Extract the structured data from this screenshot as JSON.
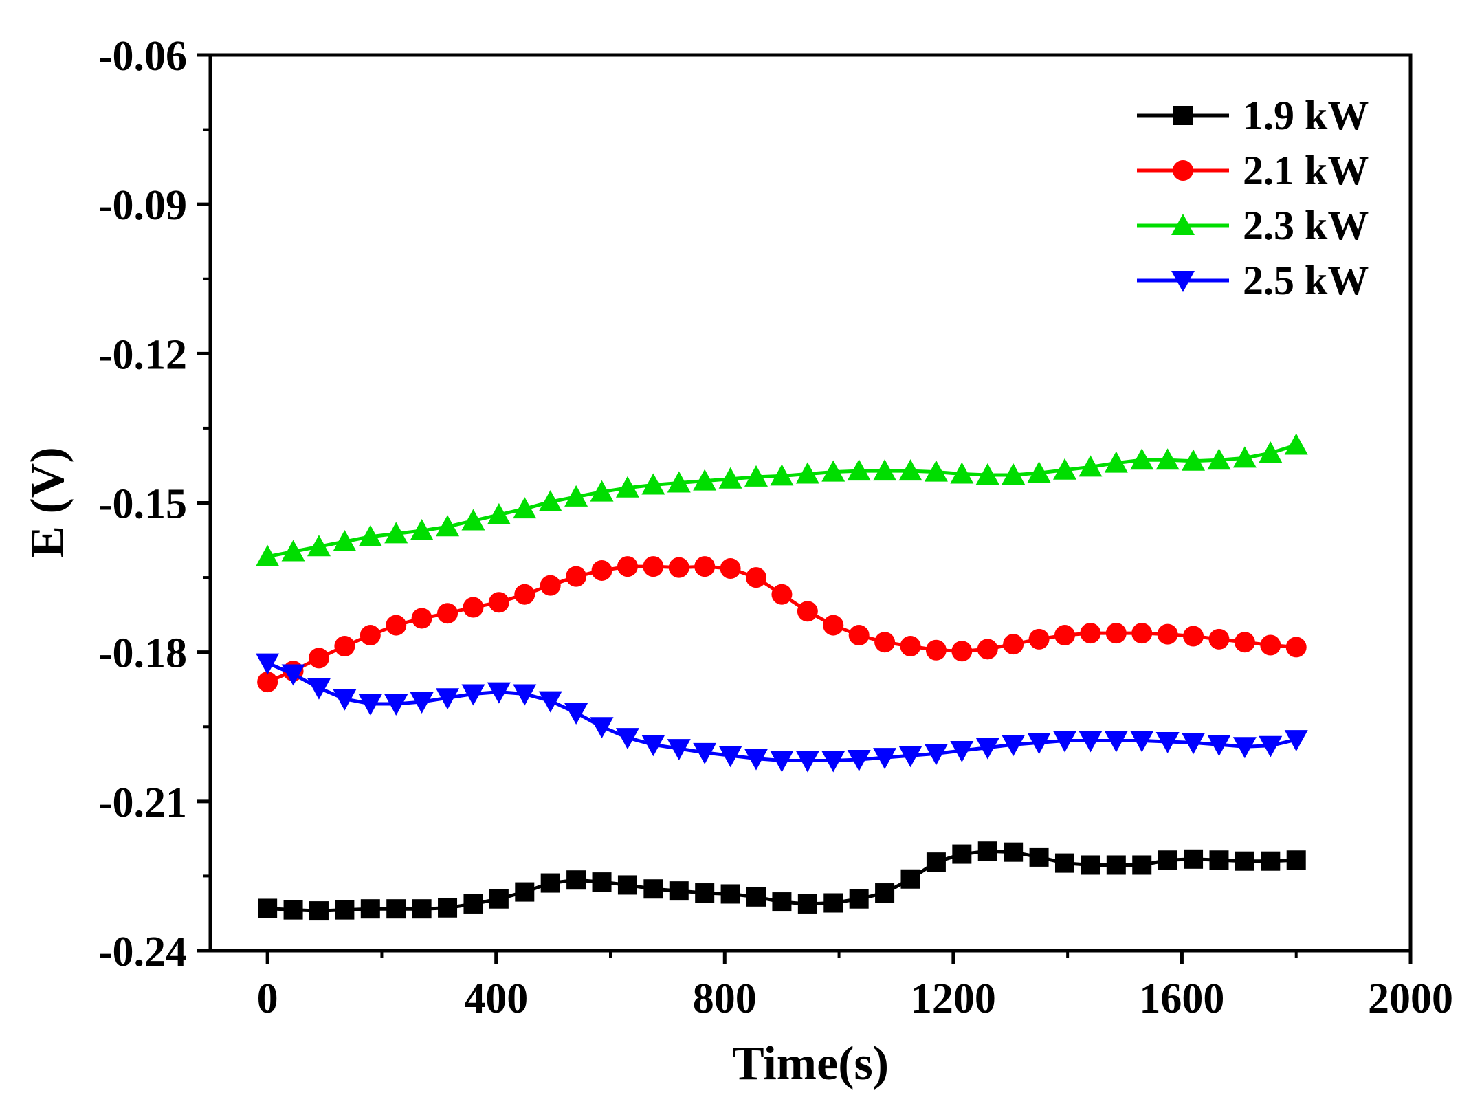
{
  "chart_data": {
    "type": "line",
    "xlabel": "Time(s)",
    "ylabel": "E (V)",
    "xlim": [
      -100,
      2000
    ],
    "ylim": [
      -0.24,
      -0.06
    ],
    "x_ticks": [
      0,
      400,
      800,
      1200,
      1600,
      2000
    ],
    "x_tick_labels": [
      "0",
      "400",
      "800",
      "1200",
      "1600",
      "2000"
    ],
    "y_ticks": [
      -0.24,
      -0.21,
      -0.18,
      -0.15,
      -0.12,
      -0.09,
      -0.06
    ],
    "y_tick_labels": [
      "-0.24",
      "-0.21",
      "-0.18",
      "-0.15",
      "-0.12",
      "-0.09",
      "-0.06"
    ],
    "grid": false,
    "legend_position": "top-right",
    "x": [
      0,
      45,
      90,
      135,
      180,
      225,
      270,
      315,
      360,
      405,
      450,
      495,
      540,
      585,
      630,
      675,
      720,
      765,
      810,
      855,
      900,
      945,
      990,
      1035,
      1080,
      1125,
      1170,
      1215,
      1260,
      1305,
      1350,
      1395,
      1440,
      1485,
      1530,
      1575,
      1620,
      1665,
      1710,
      1755,
      1800
    ],
    "series": [
      {
        "name": "1.9 kW",
        "color": "#000000",
        "marker": "square",
        "values": [
          -0.2315,
          -0.2318,
          -0.232,
          -0.2318,
          -0.2316,
          -0.2316,
          -0.2316,
          -0.2314,
          -0.2306,
          -0.2296,
          -0.2282,
          -0.2264,
          -0.2258,
          -0.2262,
          -0.2268,
          -0.2276,
          -0.228,
          -0.2284,
          -0.2286,
          -0.2292,
          -0.2302,
          -0.2306,
          -0.2304,
          -0.2296,
          -0.2284,
          -0.2256,
          -0.2222,
          -0.2206,
          -0.22,
          -0.2202,
          -0.2212,
          -0.2224,
          -0.2228,
          -0.2228,
          -0.2228,
          -0.2218,
          -0.2216,
          -0.2218,
          -0.222,
          -0.222,
          -0.2218
        ]
      },
      {
        "name": "2.1 kW",
        "color": "#ff0000",
        "marker": "circle",
        "values": [
          -0.186,
          -0.1838,
          -0.1812,
          -0.1788,
          -0.1766,
          -0.1746,
          -0.1732,
          -0.1722,
          -0.171,
          -0.17,
          -0.1684,
          -0.1666,
          -0.1648,
          -0.1636,
          -0.1628,
          -0.1628,
          -0.163,
          -0.1628,
          -0.1632,
          -0.165,
          -0.1684,
          -0.1718,
          -0.1746,
          -0.1766,
          -0.178,
          -0.1788,
          -0.1796,
          -0.1798,
          -0.1794,
          -0.1784,
          -0.1774,
          -0.1766,
          -0.1762,
          -0.1762,
          -0.1762,
          -0.1764,
          -0.1768,
          -0.1774,
          -0.178,
          -0.1786,
          -0.179
        ]
      },
      {
        "name": "2.3 kW",
        "color": "#00dd00",
        "marker": "triangle-up",
        "values": [
          -0.1608,
          -0.1598,
          -0.1588,
          -0.1578,
          -0.1568,
          -0.1562,
          -0.1556,
          -0.1548,
          -0.1536,
          -0.1524,
          -0.1512,
          -0.1498,
          -0.1488,
          -0.1478,
          -0.147,
          -0.1464,
          -0.146,
          -0.1456,
          -0.1452,
          -0.1448,
          -0.1446,
          -0.1442,
          -0.1438,
          -0.1436,
          -0.1436,
          -0.1436,
          -0.1438,
          -0.1442,
          -0.1444,
          -0.1444,
          -0.144,
          -0.1434,
          -0.1428,
          -0.142,
          -0.1414,
          -0.1414,
          -0.1416,
          -0.1414,
          -0.141,
          -0.14,
          -0.1384
        ]
      },
      {
        "name": "2.5 kW",
        "color": "#0000ff",
        "marker": "triangle-down",
        "values": [
          -0.1822,
          -0.1844,
          -0.1872,
          -0.1894,
          -0.1904,
          -0.1904,
          -0.19,
          -0.1892,
          -0.1884,
          -0.188,
          -0.1884,
          -0.1898,
          -0.1922,
          -0.195,
          -0.1972,
          -0.1986,
          -0.1994,
          -0.2002,
          -0.2008,
          -0.2014,
          -0.2018,
          -0.2018,
          -0.2018,
          -0.2016,
          -0.2012,
          -0.2008,
          -0.2004,
          -0.1998,
          -0.1992,
          -0.1986,
          -0.1982,
          -0.1978,
          -0.1978,
          -0.1978,
          -0.1978,
          -0.198,
          -0.1982,
          -0.1986,
          -0.199,
          -0.1988,
          -0.1976
        ]
      }
    ]
  }
}
